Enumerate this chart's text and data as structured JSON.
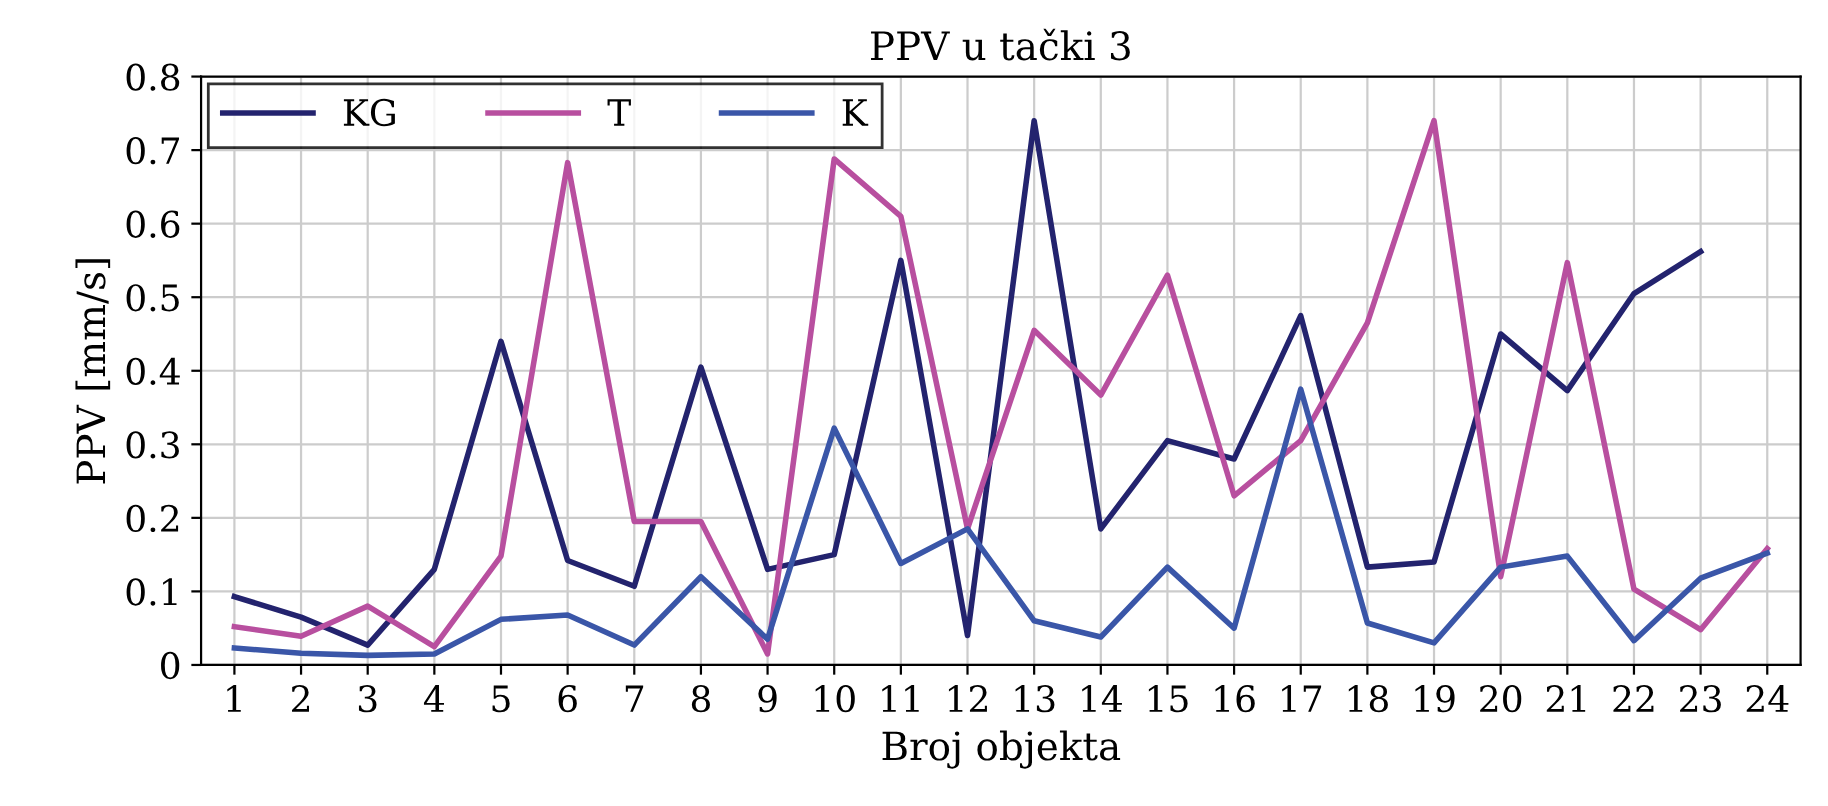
{
  "chart_data": {
    "type": "line",
    "title": "PPV u tački 3",
    "xlabel": "Broj objekta",
    "ylabel": "PPV [mm/s]",
    "categories": [
      "1",
      "2",
      "3",
      "4",
      "5",
      "6",
      "7",
      "8",
      "9",
      "10",
      "11",
      "12",
      "13",
      "14",
      "15",
      "16",
      "17",
      "18",
      "19",
      "20",
      "21",
      "22",
      "23",
      "24"
    ],
    "series": [
      {
        "name": "KG",
        "color": "#23236e",
        "values": [
          0.093,
          0.065,
          0.027,
          0.13,
          0.44,
          0.142,
          0.107,
          0.405,
          0.13,
          0.15,
          0.55,
          0.04,
          0.74,
          0.185,
          0.305,
          0.28,
          0.475,
          0.133,
          0.14,
          0.45,
          0.373,
          0.505,
          0.562,
          null
        ]
      },
      {
        "name": "T",
        "color": "#b84f9f",
        "values": [
          0.052,
          0.039,
          0.08,
          0.025,
          0.148,
          0.683,
          0.195,
          0.195,
          0.015,
          0.688,
          0.61,
          0.185,
          0.455,
          0.367,
          0.53,
          0.23,
          0.305,
          0.465,
          0.74,
          0.12,
          0.547,
          0.103,
          0.048,
          0.158
        ]
      },
      {
        "name": "K",
        "color": "#3a56a8",
        "values": [
          0.023,
          0.016,
          0.013,
          0.015,
          0.062,
          0.068,
          0.027,
          0.12,
          0.035,
          0.322,
          0.138,
          0.185,
          0.06,
          0.038,
          0.133,
          0.05,
          0.375,
          0.057,
          0.03,
          0.133,
          0.148,
          0.033,
          0.118,
          0.152
        ]
      }
    ],
    "ylim": [
      0,
      0.8
    ],
    "yticks": [
      0,
      0.1,
      0.2,
      0.3,
      0.4,
      0.5,
      0.6,
      0.7,
      0.8
    ],
    "grid": true,
    "legend": "top left"
  }
}
